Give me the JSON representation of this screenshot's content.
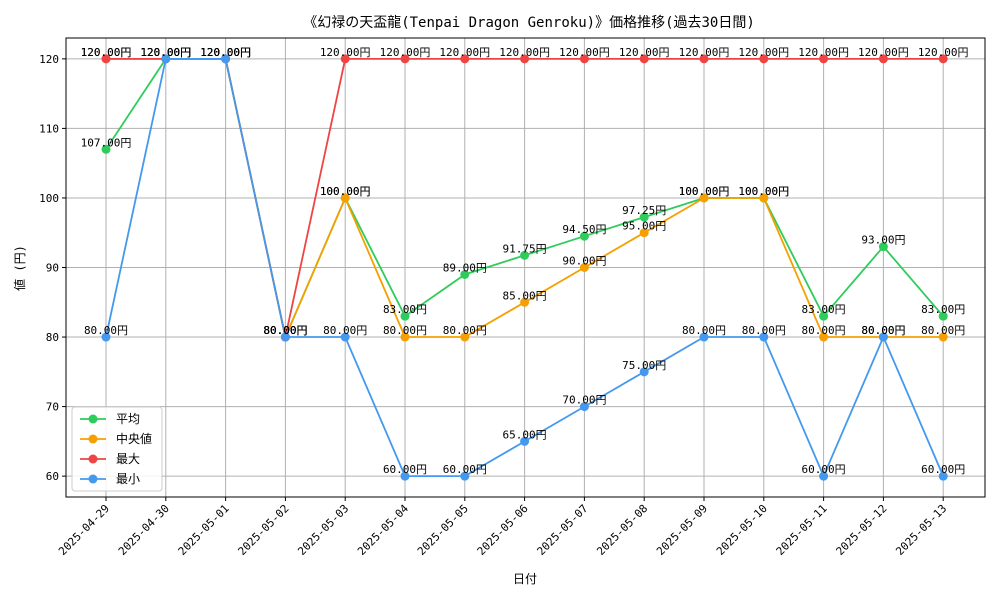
{
  "chart_data": {
    "type": "line",
    "title": "《幻禄の天盃龍(Tenpai Dragon Genroku)》価格推移(過去30日間)",
    "xlabel": "日付",
    "ylabel": "値 (円)",
    "ylim": [
      57,
      123
    ],
    "yticks": [
      60,
      70,
      80,
      90,
      100,
      110,
      120
    ],
    "grid": true,
    "legend_position": "bottom-left",
    "label_suffix": "円",
    "categories": [
      "2025-04-29",
      "2025-04-30",
      "2025-05-01",
      "2025-05-02",
      "2025-05-03",
      "2025-05-04",
      "2025-05-05",
      "2025-05-06",
      "2025-05-07",
      "2025-05-08",
      "2025-05-09",
      "2025-05-10",
      "2025-05-11",
      "2025-05-12",
      "2025-05-13"
    ],
    "series": [
      {
        "name": "平均",
        "color": "#2ecc5b",
        "values": [
          107.0,
          120.0,
          120.0,
          80.0,
          100.0,
          83.0,
          89.0,
          91.75,
          94.5,
          97.25,
          100.0,
          100.0,
          83.0,
          93.0,
          83.0
        ]
      },
      {
        "name": "中央値",
        "color": "#f5a000",
        "values": [
          120.0,
          120.0,
          120.0,
          80.0,
          100.0,
          80.0,
          80.0,
          85.0,
          90.0,
          95.0,
          100.0,
          100.0,
          80.0,
          80.0,
          80.0
        ]
      },
      {
        "name": "最大",
        "color": "#ee4444",
        "values": [
          120.0,
          120.0,
          120.0,
          80.0,
          120.0,
          120.0,
          120.0,
          120.0,
          120.0,
          120.0,
          120.0,
          120.0,
          120.0,
          120.0,
          120.0
        ]
      },
      {
        "name": "最小",
        "color": "#4499ee",
        "values": [
          80.0,
          120.0,
          120.0,
          80.0,
          80.0,
          60.0,
          60.0,
          65.0,
          70.0,
          75.0,
          80.0,
          80.0,
          60.0,
          80.0,
          60.0
        ]
      }
    ]
  }
}
